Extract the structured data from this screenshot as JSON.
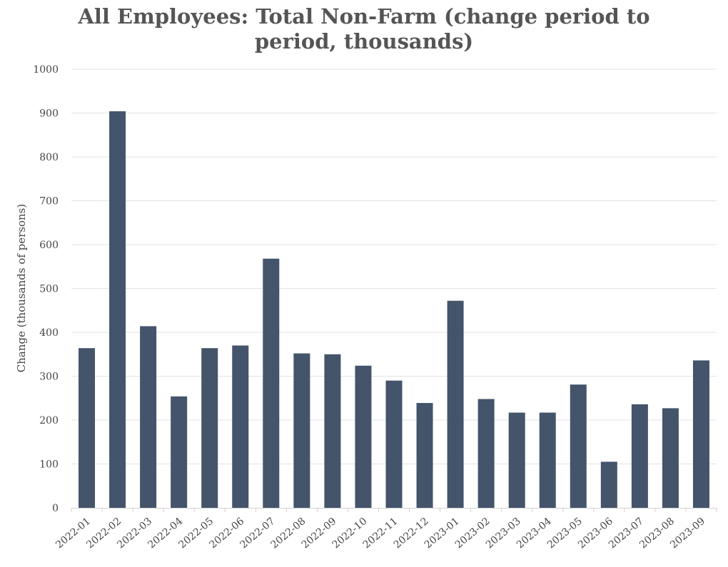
{
  "chart_data": {
    "type": "bar",
    "title": "All Employees: Total Non-Farm (change period to period, thousands)",
    "xlabel": "",
    "ylabel": "Change (thousands of persons)",
    "ylim": [
      0,
      1000
    ],
    "yticks": [
      0,
      100,
      200,
      300,
      400,
      500,
      600,
      700,
      800,
      900,
      1000
    ],
    "grid": true,
    "categories": [
      "2022-01",
      "2022-02",
      "2022-03",
      "2022-04",
      "2022-05",
      "2022-06",
      "2022-07",
      "2022-08",
      "2022-09",
      "2022-10",
      "2022-11",
      "2022-12",
      "2023-01",
      "2023-02",
      "2023-03",
      "2023-04",
      "2023-05",
      "2023-06",
      "2023-07",
      "2023-08",
      "2023-09"
    ],
    "values": [
      364,
      904,
      414,
      254,
      364,
      370,
      568,
      352,
      350,
      324,
      290,
      239,
      472,
      248,
      217,
      217,
      281,
      105,
      236,
      227,
      336
    ],
    "bar_color": "#44546a",
    "grid_color": "#e3e3e3"
  }
}
